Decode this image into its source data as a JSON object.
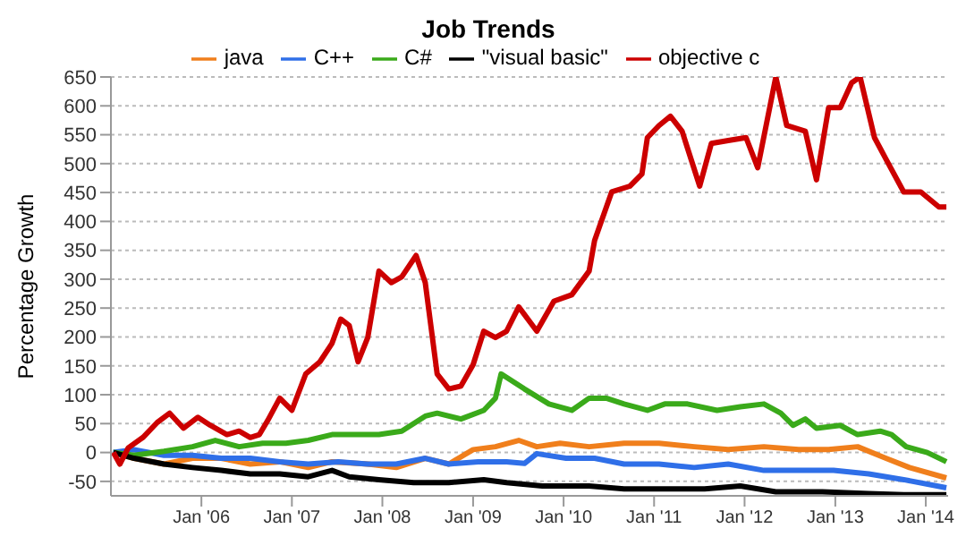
{
  "chart_data": {
    "type": "line",
    "title": "Job Trends",
    "ylabel": "Percentage Growth",
    "legend": "top",
    "grid": "y",
    "xlim": [
      "2005-01-01",
      "2014-04-01"
    ],
    "ylim": [
      -75,
      650
    ],
    "yticks": [
      -50,
      0,
      50,
      100,
      150,
      200,
      250,
      300,
      350,
      400,
      450,
      500,
      550,
      600,
      650
    ],
    "xticks": [
      {
        "value": "2006-01-01",
        "label": "Jan '06"
      },
      {
        "value": "2007-01-01",
        "label": "Jan '07"
      },
      {
        "value": "2008-01-01",
        "label": "Jan '08"
      },
      {
        "value": "2009-01-01",
        "label": "Jan '09"
      },
      {
        "value": "2010-01-01",
        "label": "Jan '10"
      },
      {
        "value": "2011-01-01",
        "label": "Jan '11"
      },
      {
        "value": "2012-01-01",
        "label": "Jan '12"
      },
      {
        "value": "2013-01-01",
        "label": "Jan '13"
      },
      {
        "value": "2014-01-01",
        "label": "Jan '14"
      }
    ],
    "series": [
      {
        "name": "java",
        "color": "#f07f1c",
        "x": [
          "2005-01-11",
          "2005-04-04",
          "2005-08-03",
          "2005-11-26",
          "2006-03-22",
          "2006-07-17",
          "2006-11-13",
          "2007-03-08",
          "2007-06-12",
          "2007-11-03",
          "2008-02-26",
          "2008-06-22",
          "2008-09-25",
          "2009-01-01",
          "2009-04-01",
          "2009-07-04",
          "2009-09-15",
          "2009-12-18",
          "2010-04-14",
          "2010-09-02",
          "2011-01-21",
          "2011-06-12",
          "2011-10-27",
          "2012-03-19",
          "2012-08-06",
          "2012-12-05",
          "2013-04-01",
          "2013-07-24",
          "2013-10-27",
          "2014-03-25"
        ],
        "values": [
          0,
          -10,
          -20,
          -10,
          -10,
          -20,
          -16,
          -26,
          -16,
          -20,
          -26,
          -10,
          -20,
          5,
          10,
          21,
          10,
          16,
          10,
          16,
          16,
          10,
          5,
          10,
          5,
          5,
          10,
          -10,
          -26,
          -44
        ]
      },
      {
        "name": "C++",
        "color": "#2f6fe8",
        "x": [
          "2005-01-11",
          "2005-04-04",
          "2005-08-03",
          "2005-11-26",
          "2006-03-22",
          "2006-07-17",
          "2006-11-13",
          "2007-03-08",
          "2007-07-07",
          "2007-11-03",
          "2008-02-26",
          "2008-06-22",
          "2008-09-25",
          "2009-01-21",
          "2009-05-16",
          "2009-07-27",
          "2009-09-15",
          "2010-01-11",
          "2010-05-06",
          "2010-09-02",
          "2011-01-21",
          "2011-06-12",
          "2011-10-27",
          "2012-03-19",
          "2012-08-06",
          "2012-12-25",
          "2013-05-16",
          "2013-10-04",
          "2014-03-25"
        ],
        "values": [
          0,
          5,
          -5,
          -5,
          -10,
          -10,
          -16,
          -20,
          -16,
          -20,
          -20,
          -10,
          -20,
          -16,
          -16,
          -19,
          -2,
          -10,
          -10,
          -20,
          -20,
          -26,
          -20,
          -31,
          -31,
          -31,
          -37,
          -47,
          -61
        ]
      },
      {
        "name": "C#",
        "color": "#3aaa1a",
        "x": [
          "2005-01-11",
          "2005-04-04",
          "2005-08-03",
          "2005-11-26",
          "2006-02-26",
          "2006-06-02",
          "2006-09-05",
          "2006-12-08",
          "2007-03-08",
          "2007-06-12",
          "2007-09-15",
          "2007-12-18",
          "2008-03-19",
          "2008-06-22",
          "2008-08-09",
          "2008-11-13",
          "2009-02-13",
          "2009-04-01",
          "2009-04-24",
          "2009-07-27",
          "2009-11-03",
          "2010-02-03",
          "2010-04-14",
          "2010-06-22",
          "2010-09-02",
          "2010-12-05",
          "2011-02-13",
          "2011-05-16",
          "2011-09-12",
          "2011-12-15",
          "2012-03-19",
          "2012-05-26",
          "2012-07-14",
          "2012-09-02",
          "2012-10-17",
          "2013-01-21",
          "2013-04-01",
          "2013-07-01",
          "2013-08-16",
          "2013-10-14",
          "2014-01-07",
          "2014-03-25"
        ],
        "values": [
          0,
          -5,
          2,
          10,
          21,
          10,
          16,
          16,
          21,
          31,
          31,
          31,
          37,
          63,
          68,
          58,
          73,
          94,
          136,
          110,
          84,
          73,
          94,
          94,
          84,
          73,
          84,
          84,
          73,
          79,
          84,
          68,
          47,
          58,
          42,
          47,
          31,
          37,
          31,
          10,
          0,
          -16
        ]
      },
      {
        "name": "\"visual basic\"",
        "color": "#000000",
        "x": [
          "2005-01-11",
          "2005-04-04",
          "2005-08-03",
          "2005-11-26",
          "2006-03-22",
          "2006-07-17",
          "2006-11-13",
          "2007-03-08",
          "2007-06-12",
          "2007-08-20",
          "2007-12-18",
          "2008-05-06",
          "2008-09-25",
          "2009-02-13",
          "2009-05-16",
          "2009-10-07",
          "2010-04-14",
          "2010-09-02",
          "2011-01-21",
          "2011-07-24",
          "2011-12-15",
          "2012-05-06",
          "2012-11-10",
          "2013-05-16",
          "2013-10-04",
          "2014-03-25"
        ],
        "values": [
          0,
          -10,
          -20,
          -26,
          -31,
          -37,
          -37,
          -42,
          -31,
          -42,
          -47,
          -52,
          -52,
          -47,
          -52,
          -58,
          -58,
          -63,
          -63,
          -63,
          -58,
          -68,
          -68,
          -71,
          -73,
          -73
        ]
      },
      {
        "name": "objective c",
        "color": "#cc0000",
        "x": [
          "2005-01-11",
          "2005-02-06",
          "2005-03-12",
          "2005-05-10",
          "2005-07-07",
          "2005-08-26",
          "2005-10-21",
          "2005-12-18",
          "2006-02-06",
          "2006-04-14",
          "2006-06-02",
          "2006-07-17",
          "2006-08-23",
          "2006-09-25",
          "2006-11-13",
          "2007-01-01",
          "2007-02-26",
          "2007-04-24",
          "2007-06-12",
          "2007-07-17",
          "2007-08-20",
          "2007-09-25",
          "2007-11-03",
          "2007-12-18",
          "2008-02-06",
          "2008-03-19",
          "2008-05-16",
          "2008-06-22",
          "2008-08-09",
          "2008-09-25",
          "2008-11-13",
          "2009-01-01",
          "2009-02-13",
          "2009-04-01",
          "2009-05-16",
          "2009-07-04",
          "2009-09-15",
          "2009-11-23",
          "2010-02-03",
          "2010-04-14",
          "2010-05-06",
          "2010-07-14",
          "2010-09-25",
          "2010-11-13",
          "2010-12-05",
          "2011-01-21",
          "2011-03-08",
          "2011-04-24",
          "2011-07-04",
          "2011-08-20",
          "2011-10-27",
          "2012-01-07",
          "2012-02-23",
          "2012-05-06",
          "2012-06-19",
          "2012-09-02",
          "2012-10-17",
          "2012-12-05",
          "2013-01-21",
          "2013-03-08",
          "2013-04-11",
          "2013-06-08",
          "2013-07-24",
          "2013-10-04",
          "2013-12-12",
          "2014-02-23",
          "2014-03-25"
        ],
        "values": [
          0,
          -20,
          8,
          26,
          52,
          68,
          42,
          61,
          47,
          31,
          37,
          26,
          31,
          55,
          94,
          73,
          136,
          157,
          189,
          231,
          220,
          157,
          199,
          314,
          294,
          304,
          341,
          294,
          136,
          110,
          115,
          152,
          210,
          199,
          210,
          252,
          210,
          262,
          273,
          314,
          367,
          451,
          461,
          482,
          545,
          566,
          582,
          556,
          461,
          535,
          540,
          545,
          493,
          650,
          566,
          556,
          472,
          597,
          597,
          640,
          650,
          545,
          508,
          451,
          451,
          425,
          425
        ]
      }
    ]
  }
}
